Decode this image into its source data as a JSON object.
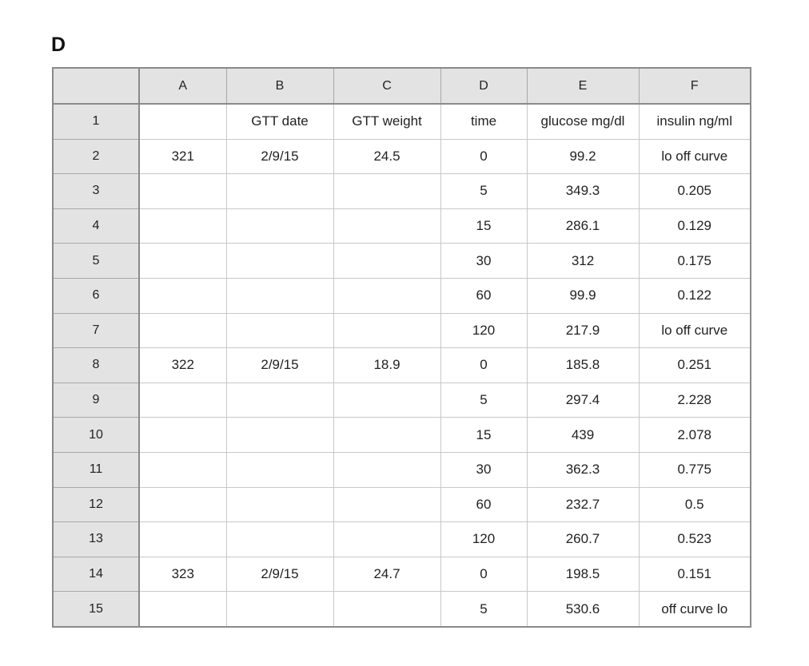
{
  "panel_label": "D",
  "sheet": {
    "columns": [
      "A",
      "B",
      "C",
      "D",
      "E",
      "F"
    ],
    "rows": [
      {
        "num": "1",
        "cells": [
          "",
          "GTT date",
          "GTT weight",
          "time",
          "glucose mg/dl",
          "insulin ng/ml"
        ]
      },
      {
        "num": "2",
        "cells": [
          "321",
          "2/9/15",
          "24.5",
          "0",
          "99.2",
          "lo off curve"
        ]
      },
      {
        "num": "3",
        "cells": [
          "",
          "",
          "",
          "5",
          "349.3",
          "0.205"
        ]
      },
      {
        "num": "4",
        "cells": [
          "",
          "",
          "",
          "15",
          "286.1",
          "0.129"
        ]
      },
      {
        "num": "5",
        "cells": [
          "",
          "",
          "",
          "30",
          "312",
          "0.175"
        ]
      },
      {
        "num": "6",
        "cells": [
          "",
          "",
          "",
          "60",
          "99.9",
          "0.122"
        ]
      },
      {
        "num": "7",
        "cells": [
          "",
          "",
          "",
          "120",
          "217.9",
          "lo off curve"
        ]
      },
      {
        "num": "8",
        "cells": [
          "322",
          "2/9/15",
          "18.9",
          "0",
          "185.8",
          "0.251"
        ]
      },
      {
        "num": "9",
        "cells": [
          "",
          "",
          "",
          "5",
          "297.4",
          "2.228"
        ]
      },
      {
        "num": "10",
        "cells": [
          "",
          "",
          "",
          "15",
          "439",
          "2.078"
        ]
      },
      {
        "num": "11",
        "cells": [
          "",
          "",
          "",
          "30",
          "362.3",
          "0.775"
        ]
      },
      {
        "num": "12",
        "cells": [
          "",
          "",
          "",
          "60",
          "232.7",
          "0.5"
        ]
      },
      {
        "num": "13",
        "cells": [
          "",
          "",
          "",
          "120",
          "260.7",
          "0.523"
        ]
      },
      {
        "num": "14",
        "cells": [
          "323",
          "2/9/15",
          "24.7",
          "0",
          "198.5",
          "0.151"
        ]
      },
      {
        "num": "15",
        "cells": [
          "",
          "",
          "",
          "5",
          "530.6",
          "off curve lo"
        ]
      }
    ]
  }
}
